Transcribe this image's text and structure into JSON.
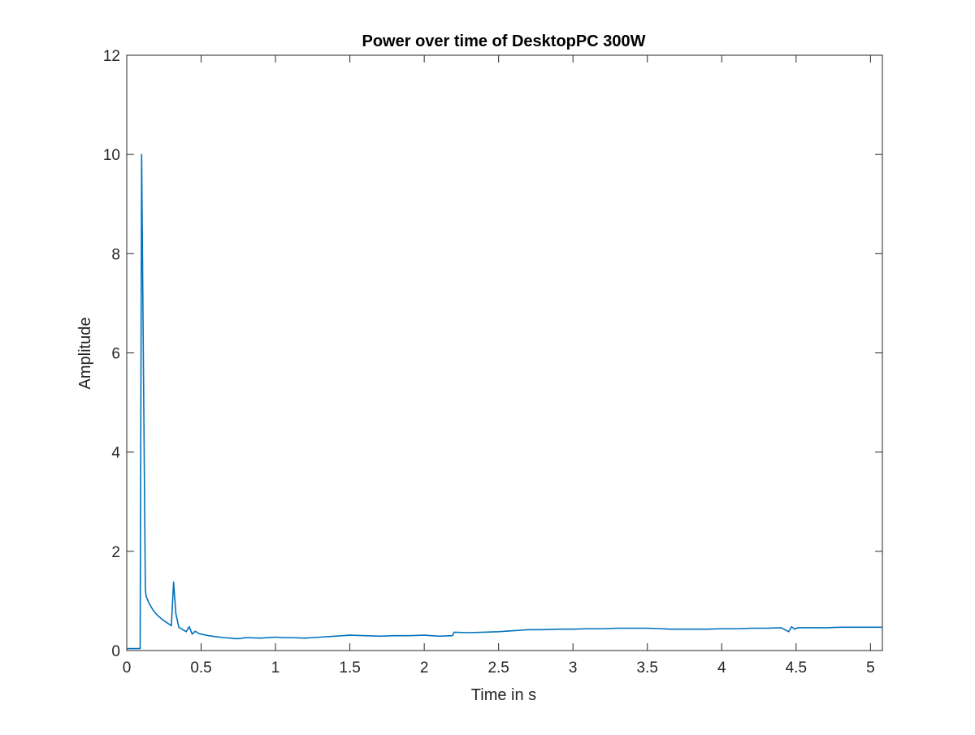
{
  "chart_data": {
    "type": "line",
    "title": "Power over time of DesktopPC 300W",
    "xlabel": "Time in s",
    "ylabel": "Amplitude",
    "xlim": [
      0,
      5.08
    ],
    "ylim": [
      0,
      12
    ],
    "xticks": [
      0,
      0.5,
      1,
      1.5,
      2,
      2.5,
      3,
      3.5,
      4,
      4.5,
      5
    ],
    "xtick_labels": [
      "0",
      "0.5",
      "1",
      "1.5",
      "2",
      "2.5",
      "3",
      "3.5",
      "4",
      "4.5",
      "5"
    ],
    "yticks": [
      0,
      2,
      4,
      6,
      8,
      10,
      12
    ],
    "ytick_labels": [
      "0",
      "2",
      "4",
      "6",
      "8",
      "10",
      "12"
    ],
    "grid": false,
    "line_color": "#0072BD",
    "series": [
      {
        "x": [
          0,
          0.09,
          0.1,
          0.125,
          0.13,
          0.15,
          0.18,
          0.21,
          0.25,
          0.3,
          0.315,
          0.33,
          0.35,
          0.4,
          0.42,
          0.44,
          0.46,
          0.48,
          0.5,
          0.55,
          0.6,
          0.65,
          0.7,
          0.72,
          0.76,
          0.8,
          0.9,
          1.0,
          1.05,
          1.1,
          1.2,
          1.3,
          1.4,
          1.45,
          1.5,
          1.6,
          1.7,
          1.8,
          1.9,
          2.0,
          2.1,
          2.19,
          2.2,
          2.3,
          2.4,
          2.5,
          2.6,
          2.7,
          2.8,
          2.9,
          3.0,
          3.1,
          3.2,
          3.3,
          3.4,
          3.5,
          3.6,
          3.65,
          3.7,
          3.8,
          3.9,
          4.0,
          4.1,
          4.2,
          4.3,
          4.4,
          4.45,
          4.47,
          4.49,
          4.51,
          4.6,
          4.7,
          4.8,
          4.9,
          5.0,
          5.08
        ],
        "values": [
          0.04,
          0.04,
          10.0,
          1.25,
          1.1,
          0.95,
          0.8,
          0.7,
          0.6,
          0.5,
          1.38,
          0.75,
          0.47,
          0.38,
          0.48,
          0.33,
          0.39,
          0.35,
          0.33,
          0.3,
          0.28,
          0.26,
          0.25,
          0.24,
          0.24,
          0.26,
          0.25,
          0.27,
          0.26,
          0.26,
          0.25,
          0.27,
          0.29,
          0.3,
          0.31,
          0.3,
          0.29,
          0.3,
          0.3,
          0.31,
          0.29,
          0.3,
          0.37,
          0.36,
          0.37,
          0.38,
          0.4,
          0.42,
          0.42,
          0.43,
          0.43,
          0.44,
          0.44,
          0.45,
          0.45,
          0.45,
          0.44,
          0.43,
          0.43,
          0.43,
          0.43,
          0.44,
          0.44,
          0.45,
          0.45,
          0.46,
          0.38,
          0.48,
          0.43,
          0.46,
          0.46,
          0.46,
          0.47,
          0.47,
          0.47,
          0.47
        ]
      }
    ]
  }
}
